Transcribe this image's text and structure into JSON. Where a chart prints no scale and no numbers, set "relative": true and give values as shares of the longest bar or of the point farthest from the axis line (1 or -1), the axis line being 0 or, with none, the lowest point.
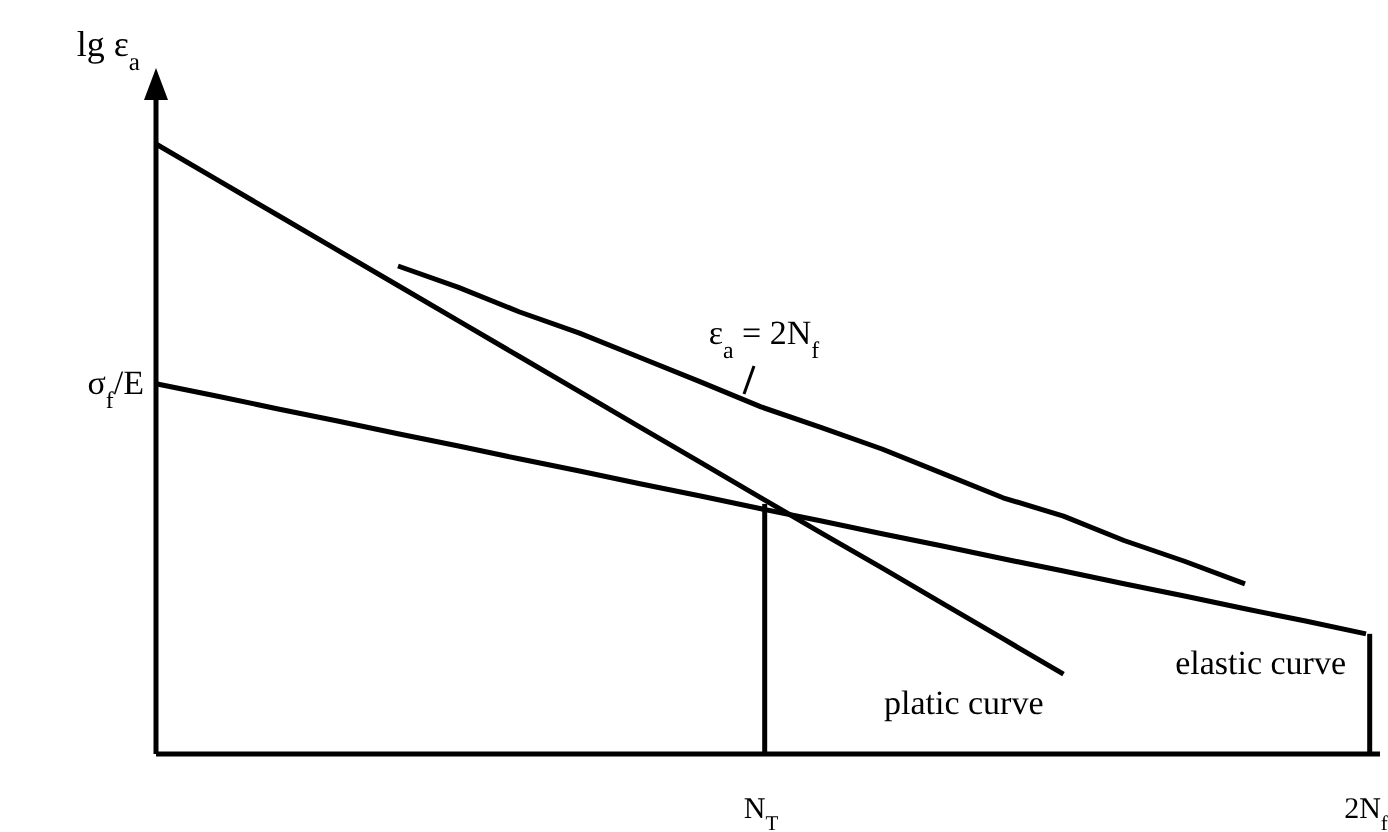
{
  "chart_data": {
    "type": "line",
    "relative": true,
    "ylabel": "lg ε$_{a}$",
    "legend": false,
    "marker": "none",
    "categories": [
      null,
      null,
      null,
      null,
      null,
      null,
      null,
      null,
      null,
      null,
      "N$_{T}$",
      null,
      null,
      null,
      null,
      null,
      null,
      null,
      null,
      null,
      "2N$_{f}$"
    ],
    "series": [
      {
        "name": "platic curve",
        "color": "#000000",
        "values": [
          1,
          0.942,
          0.884,
          0.826,
          0.768,
          0.71,
          0.652,
          0.594,
          0.536,
          0.478,
          0.42,
          0.362,
          0.305,
          0.247,
          0.189,
          0.131,
          null,
          null,
          null,
          null,
          null
        ]
      },
      {
        "name": "elastic curve",
        "color": "#000000",
        "values": [
          0.607,
          0.587,
          0.566,
          0.546,
          0.525,
          0.505,
          0.484,
          0.464,
          0.443,
          0.423,
          0.402,
          0.382,
          0.361,
          0.341,
          0.32,
          0.3,
          0.279,
          0.259,
          0.238,
          0.218,
          0.197
        ]
      },
      {
        "color": "#000000",
        "values": [
          null,
          null,
          null,
          null,
          0.8,
          0.765,
          0.725,
          0.69,
          0.65,
          0.61,
          0.569,
          0.535,
          0.5,
          0.46,
          0.42,
          0.39,
          0.35,
          0.316,
          0.279,
          null,
          null
        ]
      },
      {
        "type": "bar",
        "color": "#000000",
        "values": [
          null,
          null,
          null,
          null,
          null,
          null,
          null,
          null,
          null,
          null,
          0.41,
          null,
          null,
          null,
          null,
          null,
          null,
          null,
          null,
          null,
          0.197
        ]
      }
    ],
    "annotations": [
      "σ$_{f}$/E",
      "ε$_{a}$ = 2N$_{f}$"
    ]
  }
}
